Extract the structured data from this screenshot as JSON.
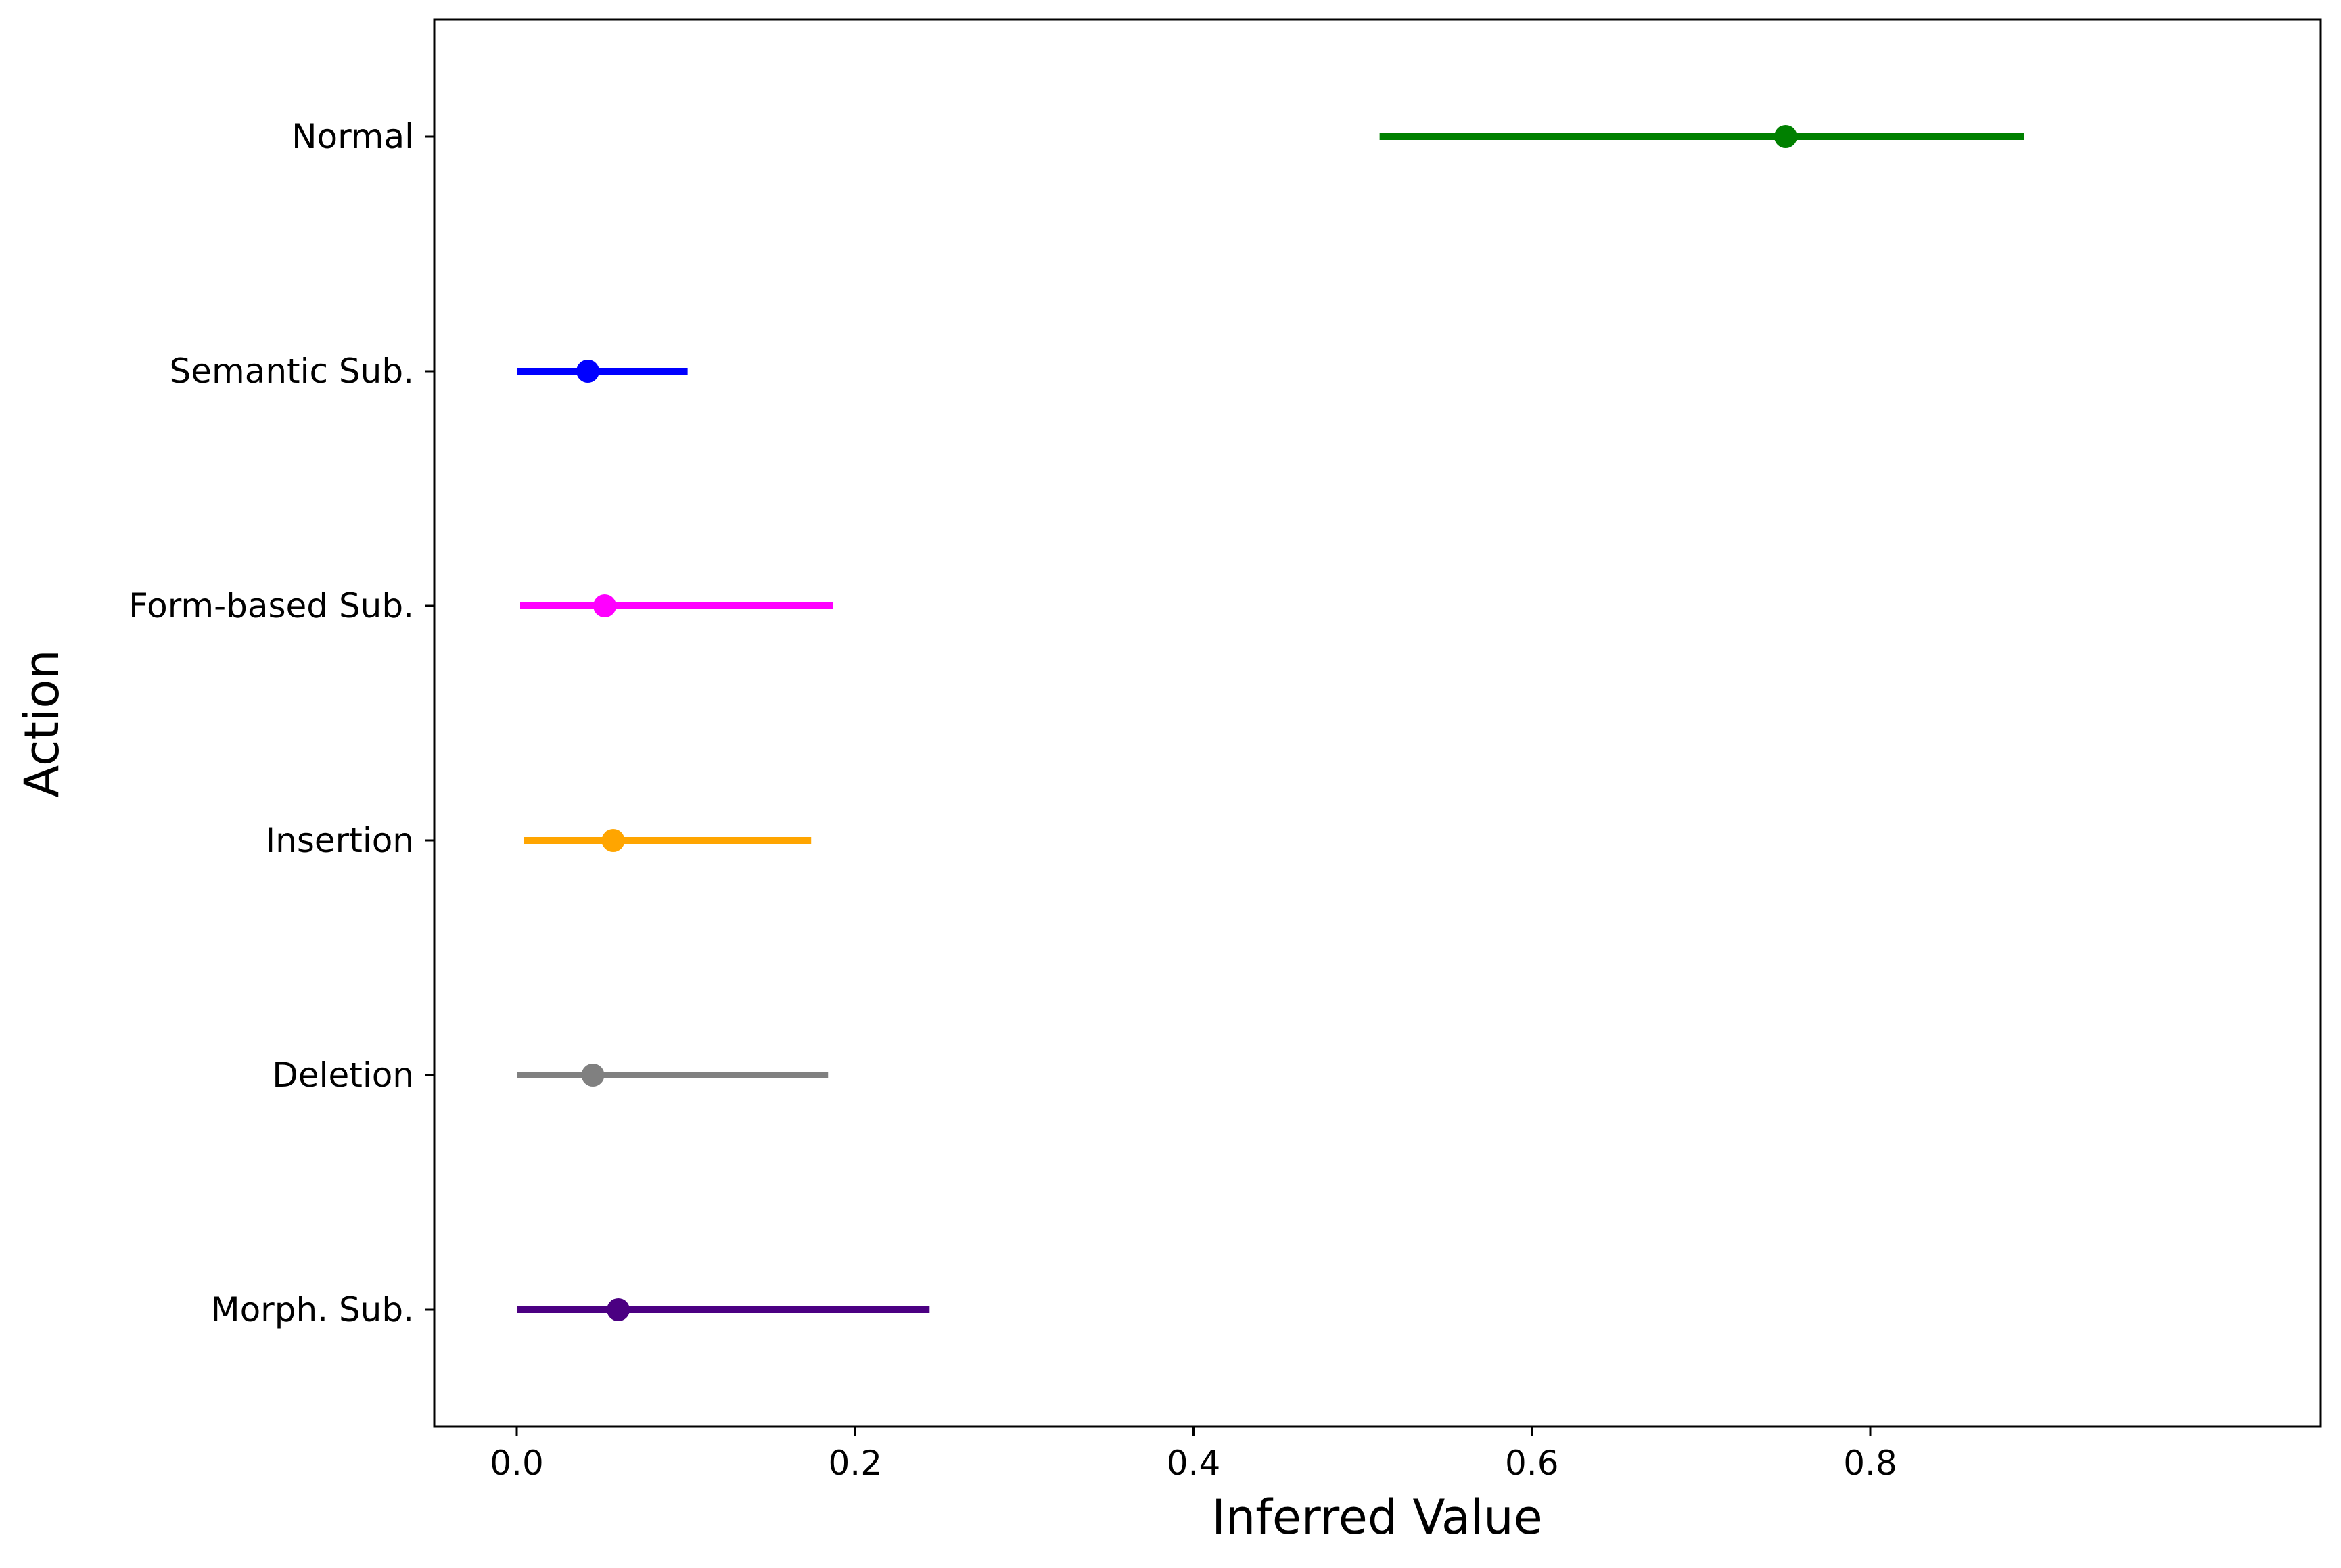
{
  "chart_data": {
    "type": "errorbar",
    "title": "",
    "xlabel": "Inferred Value",
    "ylabel": "Action",
    "xlim": [
      -0.04,
      0.935
    ],
    "xticks": [
      0.0,
      0.2,
      0.4,
      0.6,
      0.8
    ],
    "xtick_labels": [
      "0.0",
      "0.2",
      "0.4",
      "0.6",
      "0.8"
    ],
    "grid": false,
    "legend": "none",
    "series": [
      {
        "category": "Normal",
        "value": 0.75,
        "lower": 0.51,
        "upper": 0.891,
        "color": "#008000"
      },
      {
        "category": "Semantic Sub.",
        "value": 0.042,
        "lower": 0.0,
        "upper": 0.101,
        "color": "#0000ff"
      },
      {
        "category": "Form-based Sub.",
        "value": 0.052,
        "lower": 0.002,
        "upper": 0.187,
        "color": "#ff00ff"
      },
      {
        "category": "Insertion",
        "value": 0.057,
        "lower": 0.004,
        "upper": 0.174,
        "color": "#ffa500"
      },
      {
        "category": "Deletion",
        "value": 0.045,
        "lower": 0.0,
        "upper": 0.184,
        "color": "#808080"
      },
      {
        "category": "Morph. Sub.",
        "value": 0.06,
        "lower": 0.0,
        "upper": 0.244,
        "color": "#4b0082"
      }
    ]
  }
}
